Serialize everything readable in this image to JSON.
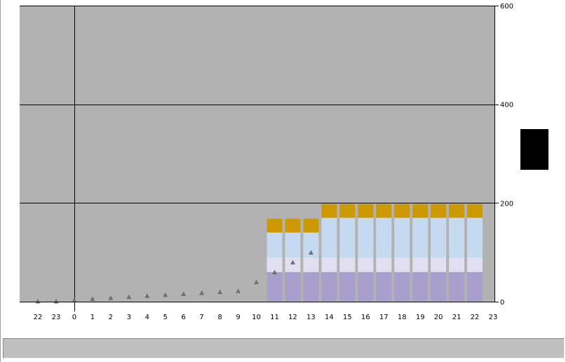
{
  "chart_data": {
    "type": "bar",
    "stacked": true,
    "x_tick_labels": [
      "22",
      "23",
      "0",
      "1",
      "2",
      "3",
      "4",
      "5",
      "6",
      "7",
      "8",
      "9",
      "10",
      "11",
      "12",
      "13",
      "14",
      "15",
      "16",
      "17",
      "18",
      "19",
      "20",
      "21",
      "22",
      "23"
    ],
    "y_tick_labels": [
      "0",
      "200",
      "400",
      "600"
    ],
    "ylim": [
      0,
      600
    ],
    "grid": true,
    "y_axis_position": "right",
    "categories": [
      "11",
      "12",
      "13",
      "14",
      "15",
      "16",
      "17",
      "18",
      "19",
      "20",
      "21",
      "22"
    ],
    "series": [
      {
        "color": "#a89fcc",
        "values": [
          60,
          60,
          60,
          60,
          60,
          60,
          60,
          60,
          60,
          60,
          60,
          60
        ]
      },
      {
        "color": "#e1dff0",
        "values": [
          30,
          30,
          30,
          30,
          30,
          30,
          30,
          30,
          30,
          30,
          30,
          30
        ]
      },
      {
        "color": "#c5daf0",
        "values": [
          50,
          50,
          50,
          80,
          80,
          80,
          80,
          80,
          80,
          80,
          80,
          80
        ]
      },
      {
        "color": "#cc9900",
        "values": [
          28,
          28,
          28,
          28,
          28,
          28,
          28,
          28,
          28,
          28,
          28,
          28
        ]
      }
    ],
    "markers": {
      "color": "#707070",
      "shape": "triangle",
      "x": [
        "22",
        "23",
        "0",
        "1",
        "2",
        "3",
        "4",
        "5",
        "6",
        "7",
        "8",
        "9",
        "10",
        "11",
        "12",
        "13"
      ],
      "values": [
        0,
        0,
        2,
        5,
        7,
        9,
        11,
        13,
        15,
        17,
        19,
        21,
        39,
        59,
        79,
        99
      ]
    },
    "plot_background": "#b2b2b2"
  }
}
